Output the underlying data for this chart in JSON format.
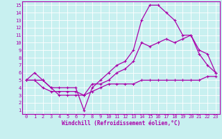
{
  "xlabel": "Windchill (Refroidissement éolien,°C)",
  "background_color": "#c8f0f0",
  "grid_color": "#ffffff",
  "line_color": "#aa00aa",
  "xlim": [
    -0.5,
    23.5
  ],
  "ylim": [
    0.5,
    15.5
  ],
  "xticks": [
    0,
    1,
    2,
    3,
    4,
    5,
    6,
    7,
    8,
    9,
    10,
    11,
    12,
    13,
    14,
    15,
    16,
    17,
    18,
    19,
    20,
    21,
    22,
    23
  ],
  "yticks": [
    1,
    2,
    3,
    4,
    5,
    6,
    7,
    8,
    9,
    10,
    11,
    12,
    13,
    14,
    15
  ],
  "series": [
    {
      "x": [
        0,
        1,
        2,
        3,
        4,
        5,
        6,
        7,
        8,
        9,
        10,
        11,
        12,
        13,
        14,
        15,
        16,
        17,
        18,
        19,
        20,
        21,
        22,
        23
      ],
      "y": [
        5,
        6,
        5,
        4,
        4,
        4,
        4,
        1,
        4,
        5,
        6,
        7,
        7.5,
        9,
        13,
        15,
        15,
        14,
        13,
        11,
        11,
        8.5,
        7,
        6
      ]
    },
    {
      "x": [
        0,
        1,
        2,
        3,
        4,
        5,
        6,
        7,
        8,
        9,
        10,
        11,
        12,
        13,
        14,
        15,
        16,
        17,
        18,
        19,
        20,
        21,
        22,
        23
      ],
      "y": [
        5,
        5,
        4,
        3.5,
        3.5,
        3.5,
        3.5,
        3,
        4.5,
        4.5,
        5,
        6,
        6.5,
        7.5,
        10,
        9.5,
        10,
        10.5,
        10,
        10.5,
        11,
        9,
        8.5,
        6
      ]
    },
    {
      "x": [
        0,
        1,
        2,
        3,
        4,
        5,
        6,
        7,
        8,
        9,
        10,
        11,
        12,
        13,
        14,
        15,
        16,
        17,
        18,
        19,
        20,
        21,
        22,
        23
      ],
      "y": [
        5,
        5,
        5,
        4,
        3,
        3,
        3,
        3,
        3.5,
        4,
        4.5,
        4.5,
        4.5,
        4.5,
        5,
        5,
        5,
        5,
        5,
        5,
        5,
        5,
        5.5,
        5.5
      ]
    }
  ],
  "marker": "+",
  "markersize": 3,
  "linewidth": 0.9,
  "tick_fontsize": 5,
  "xlabel_fontsize": 5.5
}
